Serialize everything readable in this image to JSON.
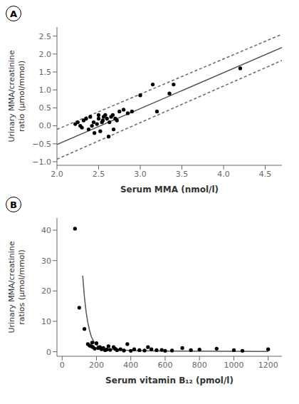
{
  "chart_data": [
    {
      "type": "scatter",
      "title": "A",
      "xlabel": "Serum MMA (nmol/l)",
      "ylabel": "Urinary MMA/creatinine\nratio (μmol/mmol)",
      "xlim": [
        2.0,
        4.7
      ],
      "ylim": [
        -1.1,
        2.75
      ],
      "xticks": [
        {
          "value": 2.0,
          "label": "2.0"
        },
        2.5,
        {
          "value": 3.0,
          "label": "3.0"
        },
        3.5,
        {
          "value": 4.0,
          "label": "4.0"
        },
        4.5
      ],
      "yticks": [
        {
          "value": -1.0,
          "label": "−1.0"
        },
        {
          "value": -0.5,
          "label": "−0.5"
        },
        {
          "value": 0.0,
          "label": "0.0"
        },
        0.5,
        {
          "value": 1.0,
          "label": "1.0"
        },
        1.5,
        {
          "value": 2.0,
          "label": "2.0"
        },
        2.5
      ],
      "grid": false,
      "series": [
        {
          "type": "scatter",
          "color": "#000000",
          "marker": "circle",
          "x": [
            2.22,
            2.25,
            2.28,
            2.3,
            2.32,
            2.35,
            2.38,
            2.4,
            2.42,
            2.44,
            2.45,
            2.48,
            2.5,
            2.5,
            2.52,
            2.54,
            2.55,
            2.56,
            2.58,
            2.6,
            2.62,
            2.63,
            2.65,
            2.67,
            2.68,
            2.7,
            2.72,
            2.75,
            2.8,
            2.85,
            2.9,
            3.0,
            3.15,
            3.2,
            3.35,
            3.4,
            4.2
          ],
          "values": [
            0.05,
            0.1,
            0.0,
            -0.05,
            0.15,
            0.2,
            -0.1,
            0.25,
            0.0,
            0.1,
            -0.2,
            0.05,
            0.2,
            0.3,
            -0.15,
            0.1,
            0.15,
            0.25,
            0.3,
            0.2,
            -0.3,
            0.1,
            0.25,
            0.3,
            -0.1,
            0.2,
            0.15,
            0.4,
            0.45,
            0.35,
            0.4,
            0.85,
            1.15,
            0.4,
            0.9,
            1.15,
            1.6
          ]
        },
        {
          "type": "line",
          "color": "#555555",
          "line_style": "solid",
          "x": [
            2.0,
            4.7
          ],
          "values": [
            -0.52,
            2.18
          ]
        },
        {
          "type": "line",
          "color": "#666666",
          "line_style": "dashed",
          "x": [
            2.0,
            4.7
          ],
          "values": [
            -0.1,
            2.55
          ]
        },
        {
          "type": "line",
          "color": "#666666",
          "line_style": "dashed",
          "x": [
            2.0,
            4.7
          ],
          "values": [
            -0.93,
            1.82
          ]
        }
      ]
    },
    {
      "type": "scatter",
      "title": "B",
      "xlabel": "Serum vitamin B₁₂ (pmol/l)",
      "ylabel": "Urinary MMA/creatinine\nratios (μmol/mmol)",
      "xlim": [
        -30,
        1280
      ],
      "ylim": [
        -1.5,
        44
      ],
      "xticks": [
        0,
        200,
        400,
        600,
        800,
        1000,
        1200
      ],
      "yticks": [
        0,
        10,
        20,
        30,
        40
      ],
      "grid": false,
      "series": [
        {
          "type": "scatter",
          "color": "#000000",
          "marker": "circle",
          "x": [
            75,
            100,
            130,
            150,
            160,
            170,
            175,
            180,
            190,
            200,
            210,
            220,
            230,
            240,
            250,
            260,
            270,
            280,
            300,
            310,
            320,
            340,
            360,
            380,
            400,
            420,
            450,
            480,
            500,
            520,
            550,
            580,
            600,
            640,
            700,
            750,
            800,
            900,
            1000,
            1050,
            1200
          ],
          "values": [
            40.5,
            14.5,
            7.5,
            2.5,
            2.0,
            1.8,
            3.0,
            1.5,
            1.0,
            2.8,
            1.2,
            1.5,
            0.8,
            1.2,
            0.5,
            0.7,
            1.8,
            0.6,
            1.5,
            0.9,
            0.5,
            0.8,
            0.4,
            2.5,
            0.3,
            0.8,
            0.5,
            0.4,
            1.5,
            0.8,
            0.5,
            0.6,
            0.3,
            0.4,
            1.2,
            0.5,
            0.7,
            1.0,
            0.5,
            0.3,
            0.8
          ]
        },
        {
          "type": "line",
          "color": "#555555",
          "line_style": "solid",
          "x": [
            120,
            130,
            140,
            150,
            160,
            170,
            180,
            190,
            200,
            220,
            250,
            300,
            400,
            600,
            1200
          ],
          "values": [
            25.0,
            18.0,
            13.0,
            9.5,
            7.0,
            5.0,
            3.8,
            2.8,
            2.2,
            1.5,
            1.0,
            0.7,
            0.4,
            0.2,
            0.1
          ]
        }
      ]
    }
  ]
}
